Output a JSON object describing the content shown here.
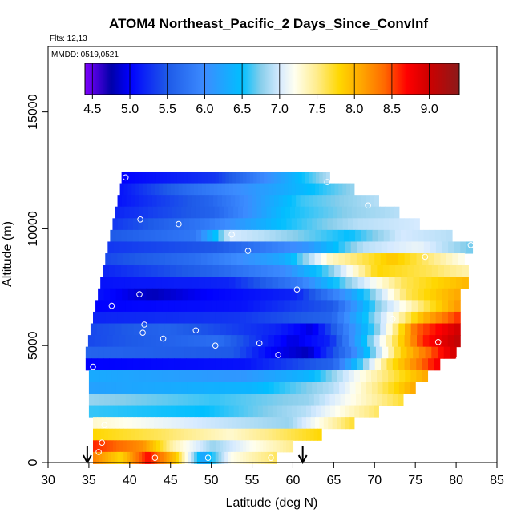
{
  "chart_data": {
    "type": "heatmap",
    "title": "ATOM4 Northeast_Pacific_2 Days_Since_ConvInf",
    "flights_note": "Flts: 12,13",
    "dates_note": "MMDD: 0519,0521",
    "xlabel": "Latitude (deg N)",
    "ylabel": "Altitude (m)",
    "xlim": [
      30,
      85
    ],
    "ylim": [
      0,
      17800
    ],
    "x_ticks": [
      30,
      35,
      40,
      45,
      50,
      55,
      60,
      65,
      70,
      75,
      80,
      85
    ],
    "y_ticks": [
      0,
      5000,
      10000,
      15000
    ],
    "colorbar": {
      "tick_labels": [
        "4.5",
        "5.0",
        "5.5",
        "6.0",
        "6.5",
        "7.0",
        "7.5",
        "8.0",
        "8.5",
        "9.0"
      ],
      "tick_values": [
        4.5,
        5.0,
        5.5,
        6.0,
        6.5,
        7.0,
        7.5,
        8.0,
        8.5,
        9.0
      ],
      "range": [
        4.4,
        9.4
      ],
      "colors": [
        "#7f00ff",
        "#0000a8",
        "#0000ff",
        "#1e5ae8",
        "#3c8cff",
        "#00bfff",
        "#87ceeb",
        "#d6eaff",
        "#fffff0",
        "#ffec8b",
        "#ffd700",
        "#ffa500",
        "#ff6a00",
        "#ff0000",
        "#cd0000",
        "#8b1a1a"
      ],
      "color_stops": [
        4.4,
        4.75,
        5.0,
        5.5,
        6.0,
        6.5,
        6.75,
        7.0,
        7.2,
        7.5,
        7.8,
        8.1,
        8.4,
        8.7,
        9.0,
        9.4
      ]
    },
    "rows": [
      {
        "alt": 12200,
        "lat_start": 39.0,
        "lat_end": 64.5,
        "values": [
          [
            0,
            5.0
          ],
          [
            0.45,
            5.3
          ],
          [
            0.8,
            6.3
          ],
          [
            1.0,
            6.9
          ]
        ]
      },
      {
        "alt": 11700,
        "lat_start": 38.8,
        "lat_end": 67.5,
        "values": [
          [
            0,
            5.1
          ],
          [
            0.3,
            5.7
          ],
          [
            0.7,
            6.3
          ],
          [
            1.0,
            6.8
          ]
        ]
      },
      {
        "alt": 11200,
        "lat_start": 38.5,
        "lat_end": 70.5,
        "values": [
          [
            0,
            5.1
          ],
          [
            0.35,
            5.6
          ],
          [
            0.7,
            6.6
          ],
          [
            1.0,
            6.9
          ]
        ]
      },
      {
        "alt": 10700,
        "lat_start": 38.2,
        "lat_end": 73.0,
        "values": [
          [
            0,
            5.2
          ],
          [
            0.35,
            5.6
          ],
          [
            0.6,
            6.5
          ],
          [
            0.85,
            6.8
          ],
          [
            1.0,
            6.9
          ]
        ]
      },
      {
        "alt": 10200,
        "lat_start": 37.9,
        "lat_end": 75.5,
        "values": [
          [
            0,
            5.3
          ],
          [
            0.3,
            5.8
          ],
          [
            0.55,
            6.5
          ],
          [
            0.8,
            6.9
          ],
          [
            1.0,
            7.0
          ]
        ]
      },
      {
        "alt": 9700,
        "lat_start": 37.6,
        "lat_end": 79.5,
        "values": [
          [
            0,
            5.5
          ],
          [
            0.25,
            5.8
          ],
          [
            0.35,
            7.0
          ],
          [
            0.45,
            6.9
          ],
          [
            0.7,
            6.5
          ],
          [
            0.85,
            7.0
          ],
          [
            1.0,
            6.9
          ]
        ]
      },
      {
        "alt": 9200,
        "lat_start": 37.3,
        "lat_end": 82.0,
        "values": [
          [
            0,
            5.3
          ],
          [
            0.3,
            5.5
          ],
          [
            0.55,
            6.1
          ],
          [
            0.7,
            6.9
          ],
          [
            0.85,
            7.1
          ],
          [
            1.0,
            6.7
          ]
        ]
      },
      {
        "alt": 8700,
        "lat_start": 37.0,
        "lat_end": 81.0,
        "values": [
          [
            0,
            5.4
          ],
          [
            0.25,
            5.7
          ],
          [
            0.5,
            6.3
          ],
          [
            0.62,
            7.3
          ],
          [
            0.8,
            7.9
          ],
          [
            1.0,
            7.2
          ]
        ]
      },
      {
        "alt": 8200,
        "lat_start": 36.7,
        "lat_end": 81.5,
        "values": [
          [
            0,
            5.2
          ],
          [
            0.3,
            5.6
          ],
          [
            0.5,
            6.0
          ],
          [
            0.62,
            6.7
          ],
          [
            0.75,
            7.8
          ],
          [
            0.9,
            7.6
          ],
          [
            1.0,
            7.4
          ]
        ]
      },
      {
        "alt": 7700,
        "lat_start": 36.4,
        "lat_end": 81.5,
        "values": [
          [
            0,
            5.1
          ],
          [
            0.35,
            5.2
          ],
          [
            0.55,
            5.9
          ],
          [
            0.68,
            6.8
          ],
          [
            0.82,
            7.6
          ],
          [
            1.0,
            8.0
          ]
        ]
      },
      {
        "alt": 7200,
        "lat_start": 36.1,
        "lat_end": 80.5,
        "values": [
          [
            0,
            5.1
          ],
          [
            0.15,
            4.8
          ],
          [
            0.3,
            5.0
          ],
          [
            0.55,
            5.2
          ],
          [
            0.7,
            6.2
          ],
          [
            0.85,
            7.6
          ],
          [
            1.0,
            8.1
          ]
        ]
      },
      {
        "alt": 6700,
        "lat_start": 35.8,
        "lat_end": 80.5,
        "values": [
          [
            0,
            5.0
          ],
          [
            0.4,
            5.1
          ],
          [
            0.65,
            5.5
          ],
          [
            0.78,
            6.8
          ],
          [
            0.9,
            7.6
          ],
          [
            1.0,
            8.2
          ]
        ]
      },
      {
        "alt": 6200,
        "lat_start": 35.5,
        "lat_end": 80.5,
        "values": [
          [
            0,
            5.2
          ],
          [
            0.4,
            5.3
          ],
          [
            0.65,
            5.6
          ],
          [
            0.78,
            6.9
          ],
          [
            0.9,
            8.0
          ],
          [
            1.0,
            8.6
          ]
        ]
      },
      {
        "alt": 5700,
        "lat_start": 35.2,
        "lat_end": 80.5,
        "values": [
          [
            0,
            5.4
          ],
          [
            0.2,
            5.6
          ],
          [
            0.5,
            5.2
          ],
          [
            0.6,
            4.9
          ],
          [
            0.78,
            6.8
          ],
          [
            0.88,
            8.4
          ],
          [
            1.0,
            9.0
          ]
        ]
      },
      {
        "alt": 5200,
        "lat_start": 34.9,
        "lat_end": 80.5,
        "values": [
          [
            0,
            5.4
          ],
          [
            0.35,
            5.7
          ],
          [
            0.55,
            4.9
          ],
          [
            0.65,
            5.2
          ],
          [
            0.8,
            7.3
          ],
          [
            0.9,
            8.6
          ],
          [
            1.0,
            9.1
          ]
        ]
      },
      {
        "alt": 4700,
        "lat_start": 34.6,
        "lat_end": 80.0,
        "values": [
          [
            0,
            5.6
          ],
          [
            0.4,
            5.5
          ],
          [
            0.5,
            5.0
          ],
          [
            0.6,
            4.8
          ],
          [
            0.72,
            5.9
          ],
          [
            0.85,
            7.8
          ],
          [
            1.0,
            9.0
          ]
        ]
      },
      {
        "alt": 4200,
        "lat_start": 34.6,
        "lat_end": 78.0,
        "values": [
          [
            0,
            5.0
          ],
          [
            0.45,
            5.1
          ],
          [
            0.7,
            5.6
          ],
          [
            0.85,
            7.6
          ],
          [
            1.0,
            8.8
          ]
        ]
      },
      {
        "alt": 3700,
        "lat_start": 35.0,
        "lat_end": 76.5,
        "values": [
          [
            0,
            6.3
          ],
          [
            0.45,
            6.1
          ],
          [
            0.65,
            6.4
          ],
          [
            0.8,
            7.2
          ],
          [
            1.0,
            8.1
          ]
        ]
      },
      {
        "alt": 3200,
        "lat_start": 35.0,
        "lat_end": 75.0,
        "values": [
          [
            0,
            6.2
          ],
          [
            0.5,
            6.4
          ],
          [
            0.75,
            6.9
          ],
          [
            0.9,
            7.6
          ],
          [
            1.0,
            8.1
          ]
        ]
      },
      {
        "alt": 2700,
        "lat_start": 35.0,
        "lat_end": 73.5,
        "values": [
          [
            0,
            6.8
          ],
          [
            0.4,
            6.6
          ],
          [
            0.7,
            6.8
          ],
          [
            1.0,
            7.7
          ]
        ]
      },
      {
        "alt": 2200,
        "lat_start": 35.0,
        "lat_end": 70.5,
        "values": [
          [
            0,
            6.6
          ],
          [
            0.4,
            6.5
          ],
          [
            0.75,
            6.9
          ],
          [
            1.0,
            7.6
          ]
        ]
      },
      {
        "alt": 1700,
        "lat_start": 35.5,
        "lat_end": 67.5,
        "values": [
          [
            0,
            7.3
          ],
          [
            0.4,
            7.0
          ],
          [
            0.75,
            6.8
          ],
          [
            1.0,
            7.7
          ]
        ]
      },
      {
        "alt": 1200,
        "lat_start": 35.5,
        "lat_end": 63.5,
        "values": [
          [
            0,
            7.8
          ],
          [
            0.3,
            7.6
          ],
          [
            0.6,
            7.3
          ],
          [
            1.0,
            7.8
          ]
        ]
      },
      {
        "alt": 700,
        "lat_start": 35.5,
        "lat_end": 60.0,
        "values": [
          [
            0,
            8.6
          ],
          [
            0.25,
            8.2
          ],
          [
            0.4,
            7.4
          ],
          [
            0.6,
            6.8
          ],
          [
            0.8,
            7.2
          ],
          [
            1.0,
            7.5
          ]
        ]
      },
      {
        "alt": 200,
        "lat_start": 35.5,
        "lat_end": 58.0,
        "values": [
          [
            0,
            8.3
          ],
          [
            0.15,
            7.8
          ],
          [
            0.3,
            8.7
          ],
          [
            0.45,
            7.9
          ],
          [
            0.6,
            6.2
          ],
          [
            0.75,
            7.2
          ],
          [
            1.0,
            7.6
          ]
        ]
      }
    ],
    "points": [
      {
        "lat": 39.5,
        "alt": 12200
      },
      {
        "lat": 64.2,
        "alt": 12000
      },
      {
        "lat": 69.2,
        "alt": 11000
      },
      {
        "lat": 41.3,
        "alt": 10400
      },
      {
        "lat": 46.0,
        "alt": 10200
      },
      {
        "lat": 52.5,
        "alt": 9750
      },
      {
        "lat": 54.5,
        "alt": 9050
      },
      {
        "lat": 76.2,
        "alt": 8800
      },
      {
        "lat": 81.8,
        "alt": 9300
      },
      {
        "lat": 60.5,
        "alt": 7400
      },
      {
        "lat": 41.2,
        "alt": 7200
      },
      {
        "lat": 37.8,
        "alt": 6700
      },
      {
        "lat": 72.2,
        "alt": 6150
      },
      {
        "lat": 41.8,
        "alt": 5900
      },
      {
        "lat": 41.6,
        "alt": 5550
      },
      {
        "lat": 48.1,
        "alt": 5650
      },
      {
        "lat": 44.1,
        "alt": 5300
      },
      {
        "lat": 55.9,
        "alt": 5100
      },
      {
        "lat": 50.5,
        "alt": 5000
      },
      {
        "lat": 77.8,
        "alt": 5150
      },
      {
        "lat": 58.2,
        "alt": 4600
      },
      {
        "lat": 80.3,
        "alt": 4400
      },
      {
        "lat": 35.5,
        "alt": 4100
      },
      {
        "lat": 36.9,
        "alt": 1600
      },
      {
        "lat": 36.6,
        "alt": 850
      },
      {
        "lat": 36.2,
        "alt": 450
      },
      {
        "lat": 43.1,
        "alt": 200
      },
      {
        "lat": 49.6,
        "alt": 200
      },
      {
        "lat": 57.3,
        "alt": 200
      }
    ],
    "arrows": [
      34.8,
      61.2
    ]
  }
}
